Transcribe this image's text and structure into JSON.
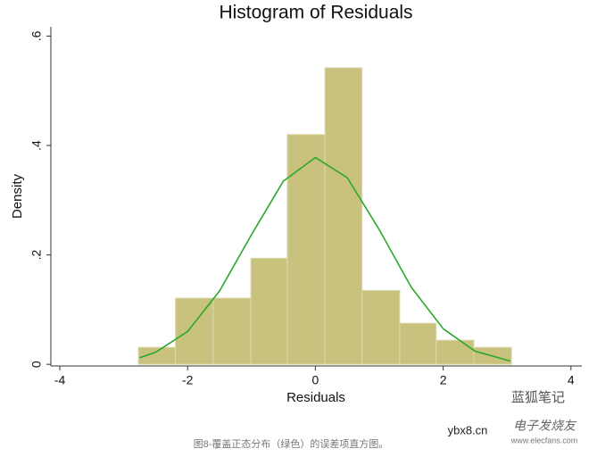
{
  "chart_data": {
    "type": "histogram",
    "title": "Histogram of Residuals",
    "x_label": "Residuals",
    "y_label": "Density",
    "bins": [
      -2.77,
      -2.19,
      -1.6,
      -1.01,
      -0.44,
      0.15,
      0.73,
      1.32,
      1.89,
      2.48,
      3.07
    ],
    "values": [
      0.031,
      0.121,
      0.121,
      0.194,
      0.42,
      0.542,
      0.135,
      0.075,
      0.044,
      0.031
    ],
    "color": "#c9c27f",
    "edge_color": "#dcd8a8",
    "curve": {
      "color": "#2aa82a",
      "x": [
        -2.75,
        -2.5,
        -2,
        -1.5,
        -1,
        -0.5,
        0,
        0.5,
        1,
        1.5,
        2,
        2.5,
        3.05
      ],
      "values": [
        0.012,
        0.022,
        0.06,
        0.134,
        0.237,
        0.335,
        0.378,
        0.341,
        0.246,
        0.141,
        0.065,
        0.024,
        0.006
      ]
    },
    "xlim": [
      -4.14,
      4.17
    ],
    "ylim": [
      -0.003,
      0.617
    ],
    "xticks": [
      -4,
      -2,
      0,
      2,
      4
    ],
    "yticks": [
      0,
      {
        "value": 0.2,
        "label": ".2"
      },
      {
        "value": 0.4,
        "label": ".4"
      },
      {
        "value": 0.6,
        "label": ".6"
      }
    ],
    "watermarks": [
      "蓝狐笔记",
      "ybx8.cn",
      "电子发烧友",
      "www.elecfans.com"
    ],
    "caption": "图8-覆盖正态分布（绿色）的误差项直方图。"
  }
}
